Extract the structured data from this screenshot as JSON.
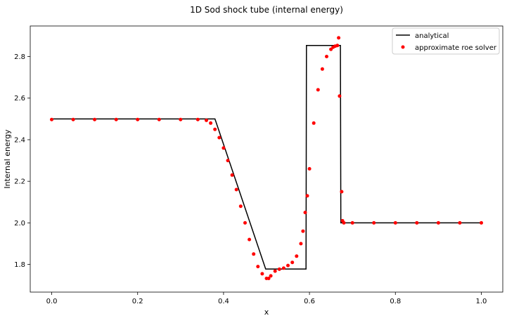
{
  "chart_data": {
    "type": "line",
    "title": "1D Sod shock tube (internal energy)",
    "xlabel": "x",
    "ylabel": "Internal energy",
    "xlim": [
      -0.05,
      1.05
    ],
    "ylim": [
      1.667,
      2.947
    ],
    "xticks": [
      0.0,
      0.2,
      0.4,
      0.6,
      0.8,
      1.0
    ],
    "xtick_labels": [
      "0.0",
      "0.2",
      "0.4",
      "0.6",
      "0.8",
      "1.0"
    ],
    "yticks": [
      1.8,
      2.0,
      2.2,
      2.4,
      2.6,
      2.8
    ],
    "ytick_labels": [
      "1.8",
      "2.0",
      "2.2",
      "2.4",
      "2.6",
      "2.8"
    ],
    "grid": false,
    "legend_position": "top-right",
    "series": [
      {
        "name": "analytical",
        "style": "line",
        "color": "#000000",
        "x": [
          0.0,
          0.36,
          0.38,
          0.498,
          0.592,
          0.593,
          0.672,
          0.673,
          1.0
        ],
        "y": [
          2.5,
          2.5,
          2.5,
          1.778,
          1.778,
          2.853,
          2.853,
          2.0,
          2.0
        ]
      },
      {
        "name": "approximate roe solver",
        "style": "scatter",
        "color": "#ff0000",
        "x": [
          0.0,
          0.05,
          0.1,
          0.15,
          0.2,
          0.25,
          0.3,
          0.34,
          0.36,
          0.37,
          0.38,
          0.39,
          0.4,
          0.41,
          0.42,
          0.43,
          0.44,
          0.45,
          0.46,
          0.47,
          0.48,
          0.49,
          0.5,
          0.505,
          0.51,
          0.52,
          0.53,
          0.54,
          0.55,
          0.56,
          0.57,
          0.58,
          0.585,
          0.59,
          0.595,
          0.6,
          0.61,
          0.62,
          0.63,
          0.64,
          0.65,
          0.655,
          0.66,
          0.665,
          0.668,
          0.67,
          0.675,
          0.677,
          0.68,
          0.7,
          0.75,
          0.8,
          0.85,
          0.9,
          0.95,
          1.0
        ],
        "y": [
          2.497,
          2.497,
          2.497,
          2.497,
          2.497,
          2.497,
          2.497,
          2.497,
          2.493,
          2.48,
          2.45,
          2.41,
          2.36,
          2.3,
          2.23,
          2.16,
          2.08,
          2.0,
          1.92,
          1.85,
          1.79,
          1.755,
          1.733,
          1.733,
          1.745,
          1.768,
          1.777,
          1.782,
          1.795,
          1.81,
          1.84,
          1.9,
          1.96,
          2.05,
          2.13,
          2.26,
          2.48,
          2.64,
          2.74,
          2.8,
          2.835,
          2.845,
          2.85,
          2.853,
          2.89,
          2.61,
          2.15,
          2.01,
          2.0,
          2.0,
          2.0,
          2.0,
          2.0,
          2.0,
          2.0,
          2.0
        ]
      }
    ]
  }
}
